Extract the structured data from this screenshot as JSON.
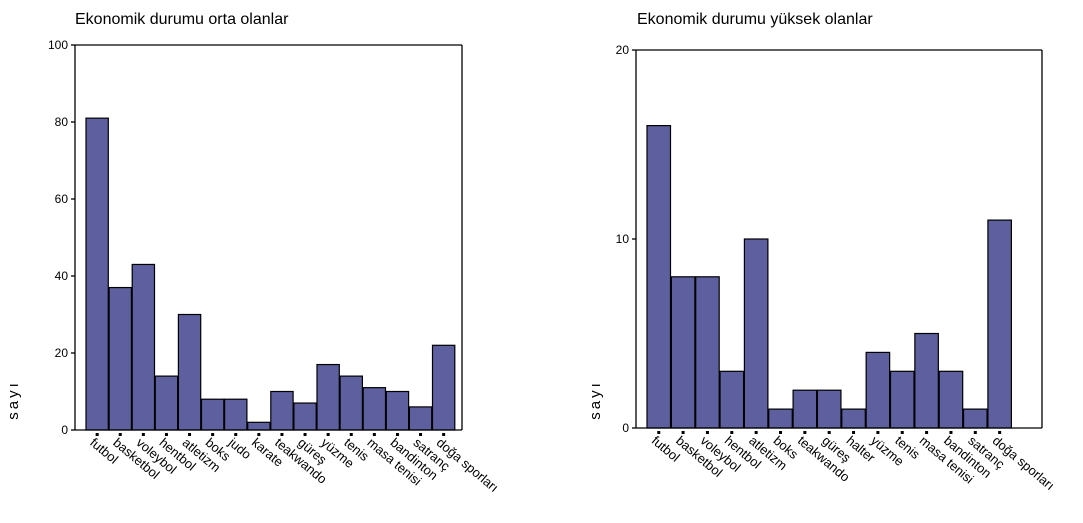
{
  "chart_data": [
    {
      "type": "bar",
      "title": "Ekonomik durumu orta olanlar",
      "ylabel": "sayı",
      "xlabel": "",
      "ylim": [
        0,
        100
      ],
      "yticks": [
        0,
        20,
        40,
        60,
        80,
        100
      ],
      "categories": [
        "futbol",
        "basketbol",
        "voleybol",
        "hentbol",
        "atletizm",
        "boks",
        "judo",
        "karate",
        "teakwando",
        "güreş",
        "yüzme",
        "tenis",
        "masa tenisi",
        "bandinton",
        "satranç",
        "doğa sporları"
      ],
      "values": [
        81,
        37,
        43,
        14,
        30,
        8,
        8,
        2,
        10,
        7,
        17,
        14,
        11,
        10,
        6,
        22
      ],
      "bar_color": "#5e5f9f",
      "grid": false
    },
    {
      "type": "bar",
      "title": "Ekonomik durumu yüksek olanlar",
      "ylabel": "sayı",
      "xlabel": "",
      "ylim": [
        0,
        20
      ],
      "yticks": [
        0,
        10,
        20
      ],
      "categories": [
        "futbol",
        "basketbol",
        "voleybol",
        "hentbol",
        "atletizm",
        "boks",
        "teakwando",
        "güreş",
        "halter",
        "yüzme",
        "tenis",
        "masa tenisi",
        "bandinton",
        "satranç",
        "doğa sporları"
      ],
      "values": [
        16,
        8,
        8,
        3,
        10,
        1,
        2,
        2,
        1,
        4,
        3,
        5,
        3,
        1,
        11
      ],
      "bar_color": "#5e5f9f",
      "grid": false
    }
  ]
}
